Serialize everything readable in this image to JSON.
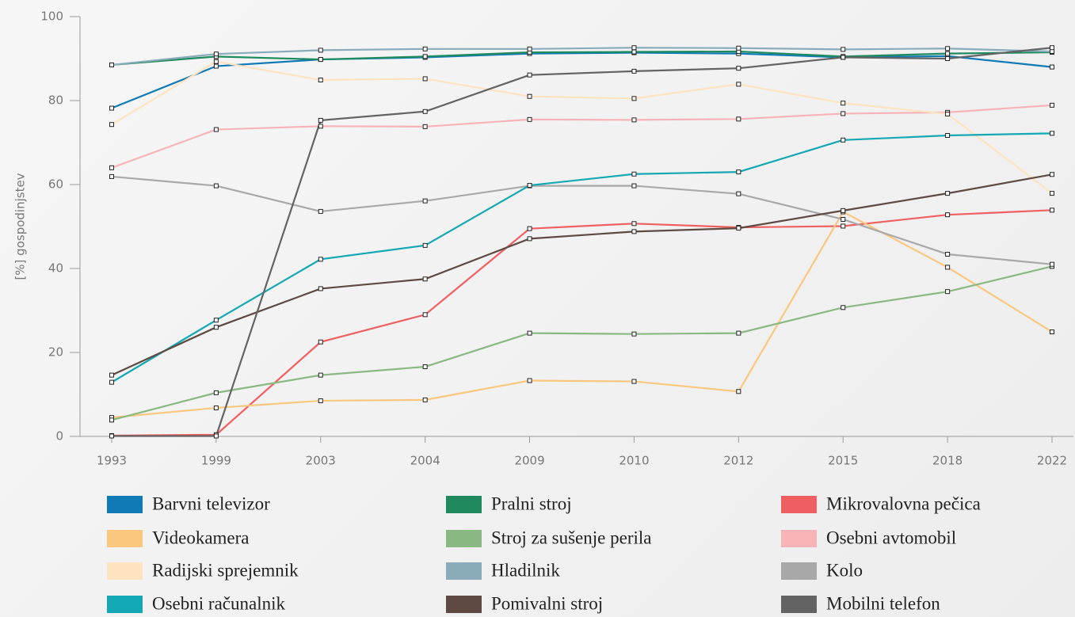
{
  "chart_data": {
    "type": "line",
    "y_label": "[%] gospodinjstev",
    "categories": [
      "1993",
      "1999",
      "2003",
      "2004",
      "2009",
      "2010",
      "2012",
      "2015",
      "2018",
      "2022"
    ],
    "ylim": [
      0,
      100
    ],
    "yticks": [
      0,
      20,
      40,
      60,
      80,
      100
    ],
    "series": [
      {
        "name": "Barvni televizor",
        "color": "#0f7ab5",
        "values": [
          78.2,
          88.2,
          89.8,
          90.3,
          91.2,
          91.4,
          91.2,
          90.3,
          90.6,
          88.0
        ]
      },
      {
        "name": "Pralni stroj",
        "color": "#1f8a5e",
        "values": [
          88.5,
          90.5,
          89.8,
          90.5,
          91.5,
          91.6,
          91.7,
          90.5,
          91.2,
          91.5
        ]
      },
      {
        "name": "Mikrovalovna pečica",
        "color": "#ef5f62",
        "values": [
          0.2,
          0.4,
          22.5,
          29.0,
          49.5,
          50.7,
          49.8,
          50.1,
          52.8,
          53.9
        ]
      },
      {
        "name": "Videokamera",
        "color": "#f9c77d",
        "values": [
          4.5,
          6.8,
          8.5,
          8.7,
          13.3,
          13.1,
          10.7,
          53.5,
          40.3,
          24.9
        ]
      },
      {
        "name": "Stroj za sušenje perila",
        "color": "#8ab882",
        "values": [
          3.9,
          10.4,
          14.6,
          16.6,
          24.6,
          24.4,
          24.6,
          30.7,
          34.5,
          40.5
        ]
      },
      {
        "name": "Osebni avtomobil",
        "color": "#f7b3b8",
        "values": [
          64.0,
          73.1,
          73.9,
          73.8,
          75.5,
          75.4,
          75.6,
          76.9,
          77.2,
          78.9
        ]
      },
      {
        "name": "Radijski sprejemnik",
        "color": "#fde3c0",
        "values": [
          74.3,
          89.3,
          84.9,
          85.2,
          81.0,
          80.5,
          83.9,
          79.4,
          76.8,
          57.9
        ]
      },
      {
        "name": "Hladilnik",
        "color": "#8aacba",
        "values": [
          88.5,
          91.1,
          92.0,
          92.3,
          92.3,
          92.6,
          92.5,
          92.2,
          92.4,
          91.7
        ]
      },
      {
        "name": "Kolo",
        "color": "#a8a8a8",
        "values": [
          61.9,
          59.7,
          53.6,
          56.1,
          59.7,
          59.7,
          57.8,
          51.7,
          43.4,
          41.0
        ]
      },
      {
        "name": "Osebni računalnik",
        "color": "#13a8b4",
        "values": [
          12.9,
          27.7,
          42.2,
          45.5,
          59.8,
          62.5,
          63.0,
          70.6,
          71.7,
          72.2
        ]
      },
      {
        "name": "Pomivalni stroj",
        "color": "#5e4a42",
        "values": [
          14.6,
          26.0,
          35.2,
          37.5,
          47.1,
          48.8,
          49.6,
          53.8,
          57.9,
          62.4
        ]
      },
      {
        "name": "Mobilni telefon",
        "color": "#636363",
        "values": [
          0.1,
          0.1,
          75.3,
          77.4,
          86.1,
          87.0,
          87.7,
          90.3,
          90.0,
          92.6
        ]
      }
    ]
  }
}
